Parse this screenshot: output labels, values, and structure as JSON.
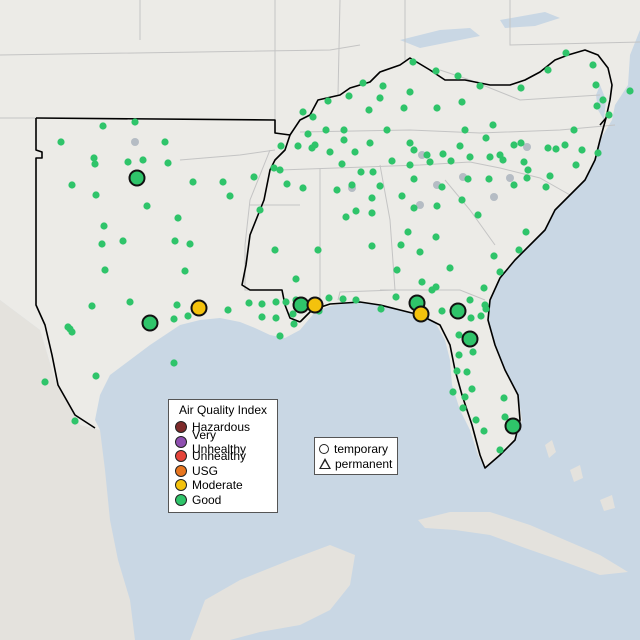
{
  "aqi_legend": {
    "title": "Air Quality Index",
    "items": [
      {
        "label": "Hazardous",
        "color": "#7e2a2a"
      },
      {
        "label": "Very Unhealthy",
        "color": "#8f4fb0"
      },
      {
        "label": "Unhealthy",
        "color": "#e5443a"
      },
      {
        "label": "USG",
        "color": "#e8761f"
      },
      {
        "label": "Moderate",
        "color": "#f4c20d"
      },
      {
        "label": "Good",
        "color": "#2fc46a"
      }
    ]
  },
  "type_legend": {
    "items": [
      {
        "label": "temporary",
        "shape": "circle"
      },
      {
        "label": "permanent",
        "shape": "triangle"
      }
    ]
  },
  "colors": {
    "land": "#ecebe7",
    "land_mexico": "#e4e2dd",
    "water": "#c9d7e4",
    "border": "#000000",
    "state_lines": "#bdbdbd",
    "good": "#2fc46a",
    "moderate": "#f4c20d",
    "inactive": "#b5bcc4"
  }
}
